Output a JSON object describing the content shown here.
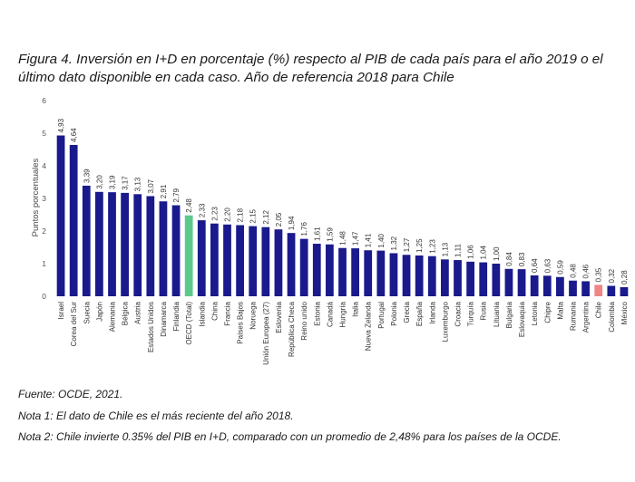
{
  "title": "Figura 4. Inversión en I+D en porcentaje (%) respecto al PIB de cada país para el año 2019 o el último dato disponible en cada caso. Año de referencia 2018 para Chile",
  "source": "Fuente: OCDE, 2021.",
  "note1": "Nota 1: El dato de Chile es el más reciente del año 2018.",
  "note2": "Nota 2: Chile invierte 0.35% del PIB en I+D, comparado con un promedio de 2,48% para los países de la OCDE.",
  "chart_data": {
    "type": "bar",
    "title": "",
    "xlabel": "",
    "ylabel": "Puntos porcentuales",
    "ylim": [
      0,
      6
    ],
    "yticks": [
      "0",
      "1",
      "2",
      "3",
      "4",
      "5",
      "6"
    ],
    "grid": false,
    "colors": {
      "default": "#1a1a8c",
      "oecd": "#5cc88a",
      "chile": "#f08585"
    },
    "categories": [
      "Israel",
      "Corea del Sur",
      "Suecia",
      "Japón",
      "Alemania",
      "Bélgica",
      "Austria",
      "Estados Unidos",
      "Dinamarca",
      "Finlandia",
      "OECD (Total)",
      "Islandia",
      "China",
      "Francia",
      "Países Bajos",
      "Noruega",
      "Unión Europea (27)",
      "Eslovenia",
      "República Checa",
      "Reino unido",
      "Estonia",
      "Canadá",
      "Hungría",
      "Italia",
      "Nueva Zelanda",
      "Portugal",
      "Polonia",
      "Grecia",
      "España",
      "Irlanda",
      "Luxemburgo",
      "Croacia",
      "Turquía",
      "Rusia",
      "Lituania",
      "Bulgaria",
      "Eslovaquia",
      "Letonia",
      "Chipre",
      "Malta",
      "Rumania",
      "Argentina",
      "Chile",
      "Colombia",
      "México"
    ],
    "values": [
      4.93,
      4.64,
      3.39,
      3.2,
      3.19,
      3.17,
      3.13,
      3.07,
      2.91,
      2.79,
      2.48,
      2.33,
      2.23,
      2.2,
      2.18,
      2.15,
      2.12,
      2.05,
      1.94,
      1.76,
      1.61,
      1.59,
      1.48,
      1.47,
      1.41,
      1.4,
      1.32,
      1.27,
      1.25,
      1.23,
      1.13,
      1.11,
      1.06,
      1.04,
      1.0,
      0.84,
      0.83,
      0.64,
      0.63,
      0.59,
      0.48,
      0.46,
      0.35,
      0.32,
      0.28
    ],
    "value_labels": [
      "4,93",
      "4,64",
      "3,39",
      "3,20",
      "3,19",
      "3,17",
      "3,13",
      "3,07",
      "2,91",
      "2,79",
      "2,48",
      "2,33",
      "2,23",
      "2,20",
      "2,18",
      "2,15",
      "2,12",
      "2,05",
      "1,94",
      "1,76",
      "1,61",
      "1,59",
      "1,48",
      "1,47",
      "1,41",
      "1,40",
      "1,32",
      "1,27",
      "1,25",
      "1,23",
      "1,13",
      "1,11",
      "1,06",
      "1,04",
      "1,00",
      "0,84",
      "0,83",
      "0,64",
      "0,63",
      "0,59",
      "0,48",
      "0,46",
      "0,35",
      "0,32",
      "0,28"
    ],
    "highlight": {
      "OECD (Total)": "oecd",
      "Chile": "chile"
    }
  }
}
